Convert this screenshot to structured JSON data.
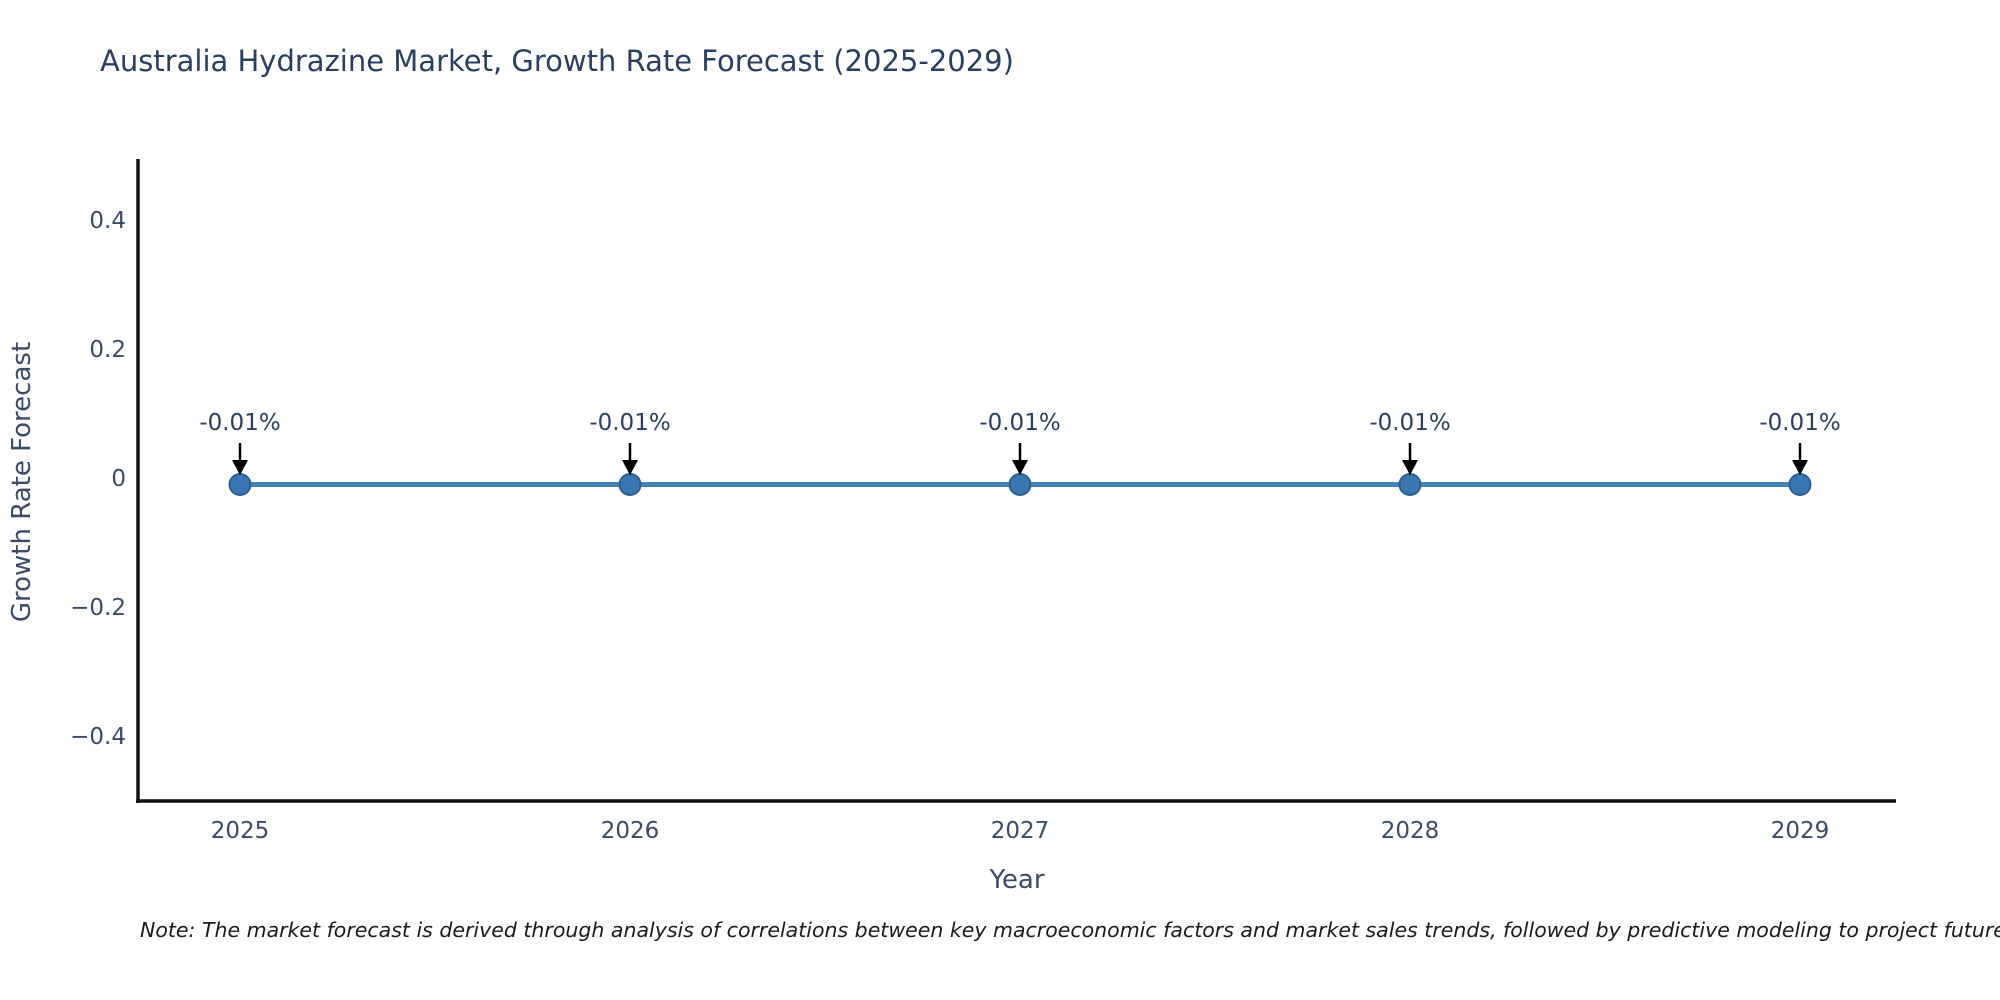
{
  "title": "Australia Hydrazine Market, Growth Rate Forecast (2025-2029)",
  "note": "Note: The market forecast is derived through analysis of correlations between key macroeconomic factors and market sales trends, followed by predictive modeling to project future sa",
  "chart_data": {
    "type": "line",
    "title": "Australia Hydrazine Market, Growth Rate Forecast (2025-2029)",
    "x": [
      2025,
      2026,
      2027,
      2028,
      2029
    ],
    "series": [
      {
        "name": "Growth Rate Forecast",
        "values": [
          -0.01,
          -0.01,
          -0.01,
          -0.01,
          -0.01
        ]
      }
    ],
    "point_labels": [
      "-0.01%",
      "-0.01%",
      "-0.01%",
      "-0.01%",
      "-0.01%"
    ],
    "xlabel": "Year",
    "ylabel": "Growth Rate Forecast",
    "xticks": [
      "2025",
      "2026",
      "2027",
      "2028",
      "2029"
    ],
    "yticks": [
      {
        "value": 0.4,
        "label": "0.4"
      },
      {
        "value": 0.2,
        "label": "0.2"
      },
      {
        "value": 0,
        "label": "0"
      },
      {
        "value": -0.2,
        "label": "−0.2"
      },
      {
        "value": -0.4,
        "label": "−0.4"
      }
    ],
    "ylim": [
      -0.5,
      0.5
    ],
    "grid": false,
    "legend": "none",
    "colors": {
      "line": "#4682b4",
      "marker_fill": "#3a76b0",
      "marker_stroke": "#2d5e90",
      "axis": "#111111",
      "arrow": "#000000",
      "title_text": "#2a3f5f",
      "tick_text": "#3b4a66"
    }
  }
}
